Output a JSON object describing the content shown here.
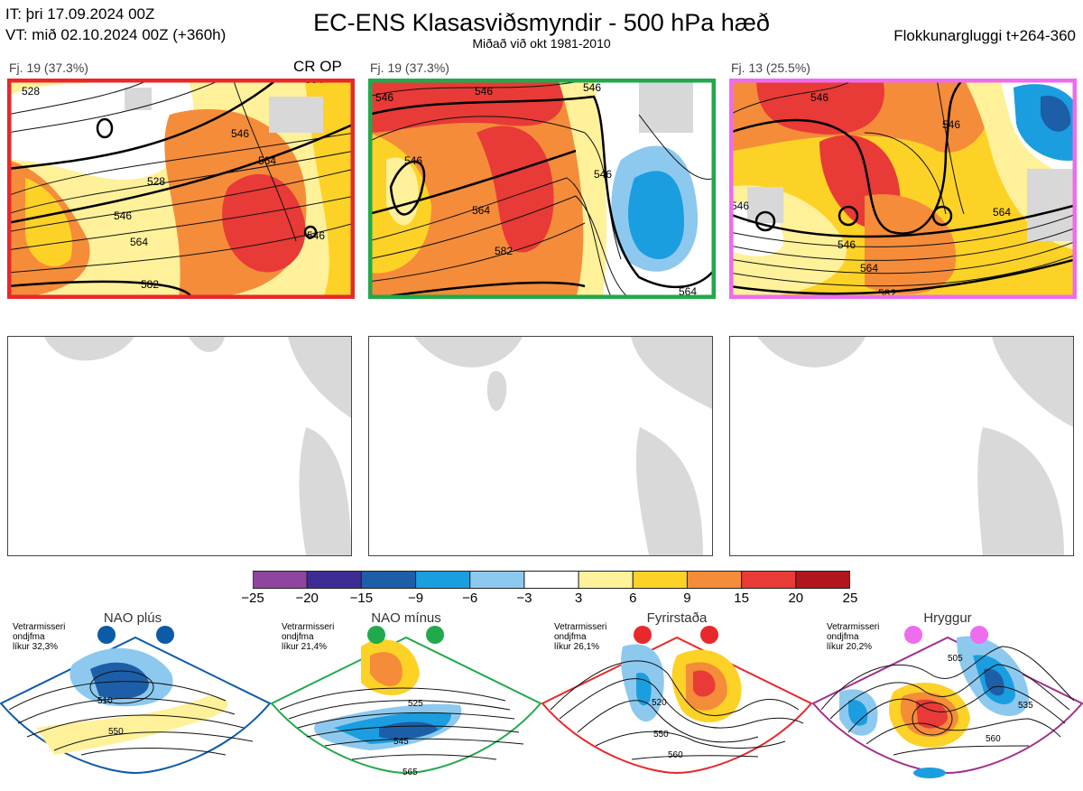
{
  "header": {
    "it_line": "IT: þri 17.09.2024 00Z",
    "vt_line": "VT: mið 02.10.2024 00Z  (+360h)",
    "title": "EC-ENS Klasasviðsmyndir - 500 hPa hæð",
    "subtitle": "Miðað við okt 1981-2010",
    "window": "Flokkunargluggi t+264-360"
  },
  "clusters": [
    {
      "label": "Fj. 19 (37.3%)",
      "border_color": "#e8282b",
      "op_tag": "CR OP",
      "contours": [
        "528",
        "546",
        "564",
        "582",
        "546",
        "564",
        "546",
        "528",
        "564"
      ]
    },
    {
      "label": "Fj. 19 (37.3%)",
      "border_color": "#21a94b",
      "contours": [
        "546",
        "546",
        "564",
        "582",
        "546",
        "546",
        "546",
        "564"
      ]
    },
    {
      "label": "Fj. 13 (25.5%)",
      "border_color": "#ee6ced",
      "contours": [
        "546",
        "546",
        "546",
        "564",
        "546",
        "564",
        "582"
      ]
    }
  ],
  "colorbar": {
    "labels": [
      "−25",
      "−20",
      "−15",
      "−9",
      "−6",
      "−3",
      "3",
      "6",
      "9",
      "15",
      "20",
      "25"
    ],
    "colors": [
      "#8e44a0",
      "#3d2b94",
      "#1d5ea8",
      "#1a9ee0",
      "#8dc9ef",
      "#ffffff",
      "#fff19a",
      "#fdd227",
      "#f58c3a",
      "#e83a37",
      "#b0161c"
    ]
  },
  "regimes": [
    {
      "name": "NAO plús",
      "lines": [
        "Vetrarmisseri",
        "ondjfma",
        "líkur 32,3%"
      ],
      "color": "#0d5aa7",
      "contour_labels": [
        "510",
        "550"
      ]
    },
    {
      "name": "NAO mínus",
      "lines": [
        "Vetrarmisseri",
        "ondjfma",
        "líkur 21,4%"
      ],
      "color": "#21a94b",
      "contour_labels": [
        "525",
        "545",
        "565"
      ]
    },
    {
      "name": "Fyrirstaða",
      "lines": [
        "Vetrarmisseri",
        "ondjfma",
        "líkur 26,1%"
      ],
      "color": "#e8282b",
      "contour_labels": [
        "520",
        "550",
        "560"
      ]
    },
    {
      "name": "Hryggur",
      "lines": [
        "Vetrarmisseri",
        "ondjfma",
        "líkur 20,2%"
      ],
      "color": "#a0308f",
      "contour_labels": [
        "505",
        "535",
        "560"
      ]
    }
  ]
}
